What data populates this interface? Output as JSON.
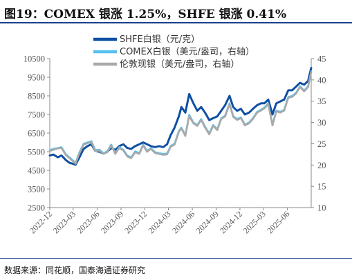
{
  "figure": {
    "title": "图19：COMEX 银涨 1.25%，SHFE 银涨 0.41%",
    "source": "数据来源：同花顺，国泰海通证券研究"
  },
  "colors": {
    "shfe": "#0f4fa3",
    "comex": "#57c2ee",
    "london": "#a9a9a9",
    "axis": "#888888",
    "title_rule": "#1a3f8a"
  },
  "chart_data": {
    "type": "line",
    "x_ticks": [
      "2022-12",
      "2023-03",
      "2023-06",
      "2023-09",
      "2023-12",
      "2024-03",
      "2024-06",
      "2024-09",
      "2024-12",
      "2025-03",
      "2025-06"
    ],
    "x_range": [
      "2022-12-01",
      "2025-09-01"
    ],
    "y_left": {
      "min": 2500,
      "max": 10500,
      "ticks": [
        2500,
        3500,
        4500,
        5500,
        6500,
        7500,
        8500,
        9500,
        10500
      ]
    },
    "y_right": {
      "min": 10,
      "max": 45,
      "ticks": [
        10,
        15,
        20,
        25,
        30,
        35,
        40,
        45
      ]
    },
    "series": [
      {
        "name": "SHFE白银（元/克）",
        "axis": "left",
        "color": "#0f4fa3",
        "points": [
          [
            "2022-12-01",
            5300
          ],
          [
            "2022-12-15",
            5350
          ],
          [
            "2023-01-01",
            5200
          ],
          [
            "2023-01-15",
            5300
          ],
          [
            "2023-02-01",
            5050
          ],
          [
            "2023-02-15",
            4900
          ],
          [
            "2023-03-01",
            4850
          ],
          [
            "2023-03-10",
            4800
          ],
          [
            "2023-03-25",
            5200
          ],
          [
            "2023-04-10",
            5650
          ],
          [
            "2023-04-25",
            5800
          ],
          [
            "2023-05-10",
            5900
          ],
          [
            "2023-05-25",
            5550
          ],
          [
            "2023-06-10",
            5500
          ],
          [
            "2023-06-25",
            5400
          ],
          [
            "2023-07-10",
            5500
          ],
          [
            "2023-07-25",
            5700
          ],
          [
            "2023-08-10",
            5600
          ],
          [
            "2023-08-25",
            5800
          ],
          [
            "2023-09-10",
            5900
          ],
          [
            "2023-09-25",
            5700
          ],
          [
            "2023-10-10",
            5650
          ],
          [
            "2023-10-25",
            5800
          ],
          [
            "2023-11-10",
            5900
          ],
          [
            "2023-11-25",
            6000
          ],
          [
            "2023-12-10",
            5900
          ],
          [
            "2023-12-25",
            5800
          ],
          [
            "2024-01-10",
            5750
          ],
          [
            "2024-01-25",
            5800
          ],
          [
            "2024-02-10",
            5750
          ],
          [
            "2024-02-25",
            5900
          ],
          [
            "2024-03-10",
            6400
          ],
          [
            "2024-03-25",
            6800
          ],
          [
            "2024-04-10",
            7400
          ],
          [
            "2024-04-20",
            7900
          ],
          [
            "2024-05-05",
            7600
          ],
          [
            "2024-05-20",
            8600
          ],
          [
            "2024-06-05",
            8100
          ],
          [
            "2024-06-20",
            7700
          ],
          [
            "2024-07-05",
            7900
          ],
          [
            "2024-07-20",
            7600
          ],
          [
            "2024-08-05",
            7200
          ],
          [
            "2024-08-20",
            7300
          ],
          [
            "2024-09-05",
            7400
          ],
          [
            "2024-09-20",
            7700
          ],
          [
            "2024-10-05",
            8000
          ],
          [
            "2024-10-22",
            8500
          ],
          [
            "2024-11-05",
            7900
          ],
          [
            "2024-11-20",
            7700
          ],
          [
            "2024-12-05",
            7800
          ],
          [
            "2024-12-20",
            7500
          ],
          [
            "2025-01-05",
            7600
          ],
          [
            "2025-01-20",
            7800
          ],
          [
            "2025-02-05",
            8000
          ],
          [
            "2025-02-20",
            8100
          ],
          [
            "2025-03-05",
            8100
          ],
          [
            "2025-03-20",
            8300
          ],
          [
            "2025-04-05",
            7500
          ],
          [
            "2025-04-20",
            8100
          ],
          [
            "2025-05-05",
            8200
          ],
          [
            "2025-05-20",
            8300
          ],
          [
            "2025-06-05",
            8800
          ],
          [
            "2025-06-20",
            8800
          ],
          [
            "2025-07-05",
            9000
          ],
          [
            "2025-07-20",
            9200
          ],
          [
            "2025-08-05",
            9100
          ],
          [
            "2025-08-20",
            9300
          ],
          [
            "2025-09-01",
            10000
          ]
        ]
      },
      {
        "name": "COMEX白银（美元/盎司，右轴）",
        "axis": "right",
        "color": "#57c2ee",
        "points": [
          [
            "2022-12-01",
            23.5
          ],
          [
            "2022-12-15",
            23.8
          ],
          [
            "2023-01-01",
            24.0
          ],
          [
            "2023-01-15",
            24.2
          ],
          [
            "2023-02-01",
            22.5
          ],
          [
            "2023-02-15",
            21.8
          ],
          [
            "2023-03-01",
            21.0
          ],
          [
            "2023-03-10",
            20.5
          ],
          [
            "2023-03-25",
            23.0
          ],
          [
            "2023-04-10",
            25.0
          ],
          [
            "2023-04-25",
            25.3
          ],
          [
            "2023-05-10",
            25.6
          ],
          [
            "2023-05-25",
            23.5
          ],
          [
            "2023-06-10",
            23.6
          ],
          [
            "2023-06-25",
            22.8
          ],
          [
            "2023-07-10",
            23.2
          ],
          [
            "2023-07-25",
            24.8
          ],
          [
            "2023-08-10",
            22.8
          ],
          [
            "2023-08-25",
            24.2
          ],
          [
            "2023-09-10",
            23.6
          ],
          [
            "2023-09-25",
            22.2
          ],
          [
            "2023-10-10",
            21.8
          ],
          [
            "2023-10-25",
            23.2
          ],
          [
            "2023-11-10",
            22.8
          ],
          [
            "2023-11-25",
            24.8
          ],
          [
            "2023-12-10",
            23.3
          ],
          [
            "2023-12-25",
            24.0
          ],
          [
            "2024-01-10",
            23.0
          ],
          [
            "2024-01-25",
            22.8
          ],
          [
            "2024-02-10",
            22.6
          ],
          [
            "2024-02-25",
            22.7
          ],
          [
            "2024-03-10",
            24.5
          ],
          [
            "2024-03-25",
            25.0
          ],
          [
            "2024-04-10",
            28.0
          ],
          [
            "2024-04-20",
            28.8
          ],
          [
            "2024-05-05",
            27.0
          ],
          [
            "2024-05-20",
            31.8
          ],
          [
            "2024-06-05",
            30.0
          ],
          [
            "2024-06-20",
            29.4
          ],
          [
            "2024-07-05",
            30.8
          ],
          [
            "2024-07-20",
            29.0
          ],
          [
            "2024-08-05",
            27.4
          ],
          [
            "2024-08-20",
            29.4
          ],
          [
            "2024-09-05",
            28.4
          ],
          [
            "2024-09-20",
            31.0
          ],
          [
            "2024-10-05",
            31.6
          ],
          [
            "2024-10-22",
            34.5
          ],
          [
            "2024-11-05",
            31.5
          ],
          [
            "2024-11-20",
            30.8
          ],
          [
            "2024-12-05",
            31.2
          ],
          [
            "2024-12-20",
            29.5
          ],
          [
            "2025-01-05",
            30.0
          ],
          [
            "2025-01-20",
            31.0
          ],
          [
            "2025-02-05",
            32.5
          ],
          [
            "2025-02-20",
            33.0
          ],
          [
            "2025-03-05",
            33.5
          ],
          [
            "2025-03-20",
            34.5
          ],
          [
            "2025-04-05",
            29.5
          ],
          [
            "2025-04-20",
            32.8
          ],
          [
            "2025-05-05",
            32.5
          ],
          [
            "2025-05-20",
            33.0
          ],
          [
            "2025-06-05",
            36.0
          ],
          [
            "2025-06-20",
            36.2
          ],
          [
            "2025-07-05",
            37.0
          ],
          [
            "2025-07-20",
            38.5
          ],
          [
            "2025-08-05",
            37.5
          ],
          [
            "2025-08-20",
            38.5
          ],
          [
            "2025-09-01",
            42.0
          ]
        ]
      },
      {
        "name": "伦敦现银（美元/盎司，右轴）",
        "axis": "right",
        "color": "#a9a9a9",
        "points": [
          [
            "2022-12-01",
            23.3
          ],
          [
            "2022-12-15",
            23.6
          ],
          [
            "2023-01-01",
            23.9
          ],
          [
            "2023-01-15",
            24.0
          ],
          [
            "2023-02-01",
            22.3
          ],
          [
            "2023-02-15",
            21.6
          ],
          [
            "2023-03-01",
            20.8
          ],
          [
            "2023-03-10",
            20.3
          ],
          [
            "2023-03-25",
            22.8
          ],
          [
            "2023-04-10",
            24.8
          ],
          [
            "2023-04-25",
            25.1
          ],
          [
            "2023-05-10",
            25.4
          ],
          [
            "2023-05-25",
            23.3
          ],
          [
            "2023-06-10",
            23.4
          ],
          [
            "2023-06-25",
            22.6
          ],
          [
            "2023-07-10",
            23.0
          ],
          [
            "2023-07-25",
            24.6
          ],
          [
            "2023-08-10",
            22.6
          ],
          [
            "2023-08-25",
            24.0
          ],
          [
            "2023-09-10",
            23.4
          ],
          [
            "2023-09-25",
            22.0
          ],
          [
            "2023-10-10",
            21.6
          ],
          [
            "2023-10-25",
            23.0
          ],
          [
            "2023-11-10",
            22.6
          ],
          [
            "2023-11-25",
            24.6
          ],
          [
            "2023-12-10",
            23.1
          ],
          [
            "2023-12-25",
            23.8
          ],
          [
            "2024-01-10",
            22.8
          ],
          [
            "2024-01-25",
            22.6
          ],
          [
            "2024-02-10",
            22.4
          ],
          [
            "2024-02-25",
            22.5
          ],
          [
            "2024-03-10",
            24.3
          ],
          [
            "2024-03-25",
            24.8
          ],
          [
            "2024-04-10",
            27.8
          ],
          [
            "2024-04-20",
            28.6
          ],
          [
            "2024-05-05",
            26.8
          ],
          [
            "2024-05-20",
            31.5
          ],
          [
            "2024-06-05",
            29.8
          ],
          [
            "2024-06-20",
            29.2
          ],
          [
            "2024-07-05",
            30.6
          ],
          [
            "2024-07-20",
            28.8
          ],
          [
            "2024-08-05",
            27.2
          ],
          [
            "2024-08-20",
            29.2
          ],
          [
            "2024-09-05",
            28.2
          ],
          [
            "2024-09-20",
            30.8
          ],
          [
            "2024-10-05",
            31.4
          ],
          [
            "2024-10-22",
            34.3
          ],
          [
            "2024-11-05",
            31.3
          ],
          [
            "2024-11-20",
            30.6
          ],
          [
            "2024-12-05",
            31.0
          ],
          [
            "2024-12-20",
            29.3
          ],
          [
            "2025-01-05",
            29.8
          ],
          [
            "2025-01-20",
            30.8
          ],
          [
            "2025-02-05",
            32.3
          ],
          [
            "2025-02-20",
            32.8
          ],
          [
            "2025-03-05",
            33.3
          ],
          [
            "2025-03-20",
            34.3
          ],
          [
            "2025-04-05",
            29.3
          ],
          [
            "2025-04-20",
            32.6
          ],
          [
            "2025-05-05",
            32.3
          ],
          [
            "2025-05-20",
            32.8
          ],
          [
            "2025-06-05",
            35.8
          ],
          [
            "2025-06-20",
            36.0
          ],
          [
            "2025-07-05",
            36.8
          ],
          [
            "2025-07-20",
            38.3
          ],
          [
            "2025-08-05",
            37.3
          ],
          [
            "2025-08-20",
            38.3
          ],
          [
            "2025-09-01",
            41.8
          ]
        ]
      }
    ],
    "legend_position": "top-center",
    "grid": false
  }
}
